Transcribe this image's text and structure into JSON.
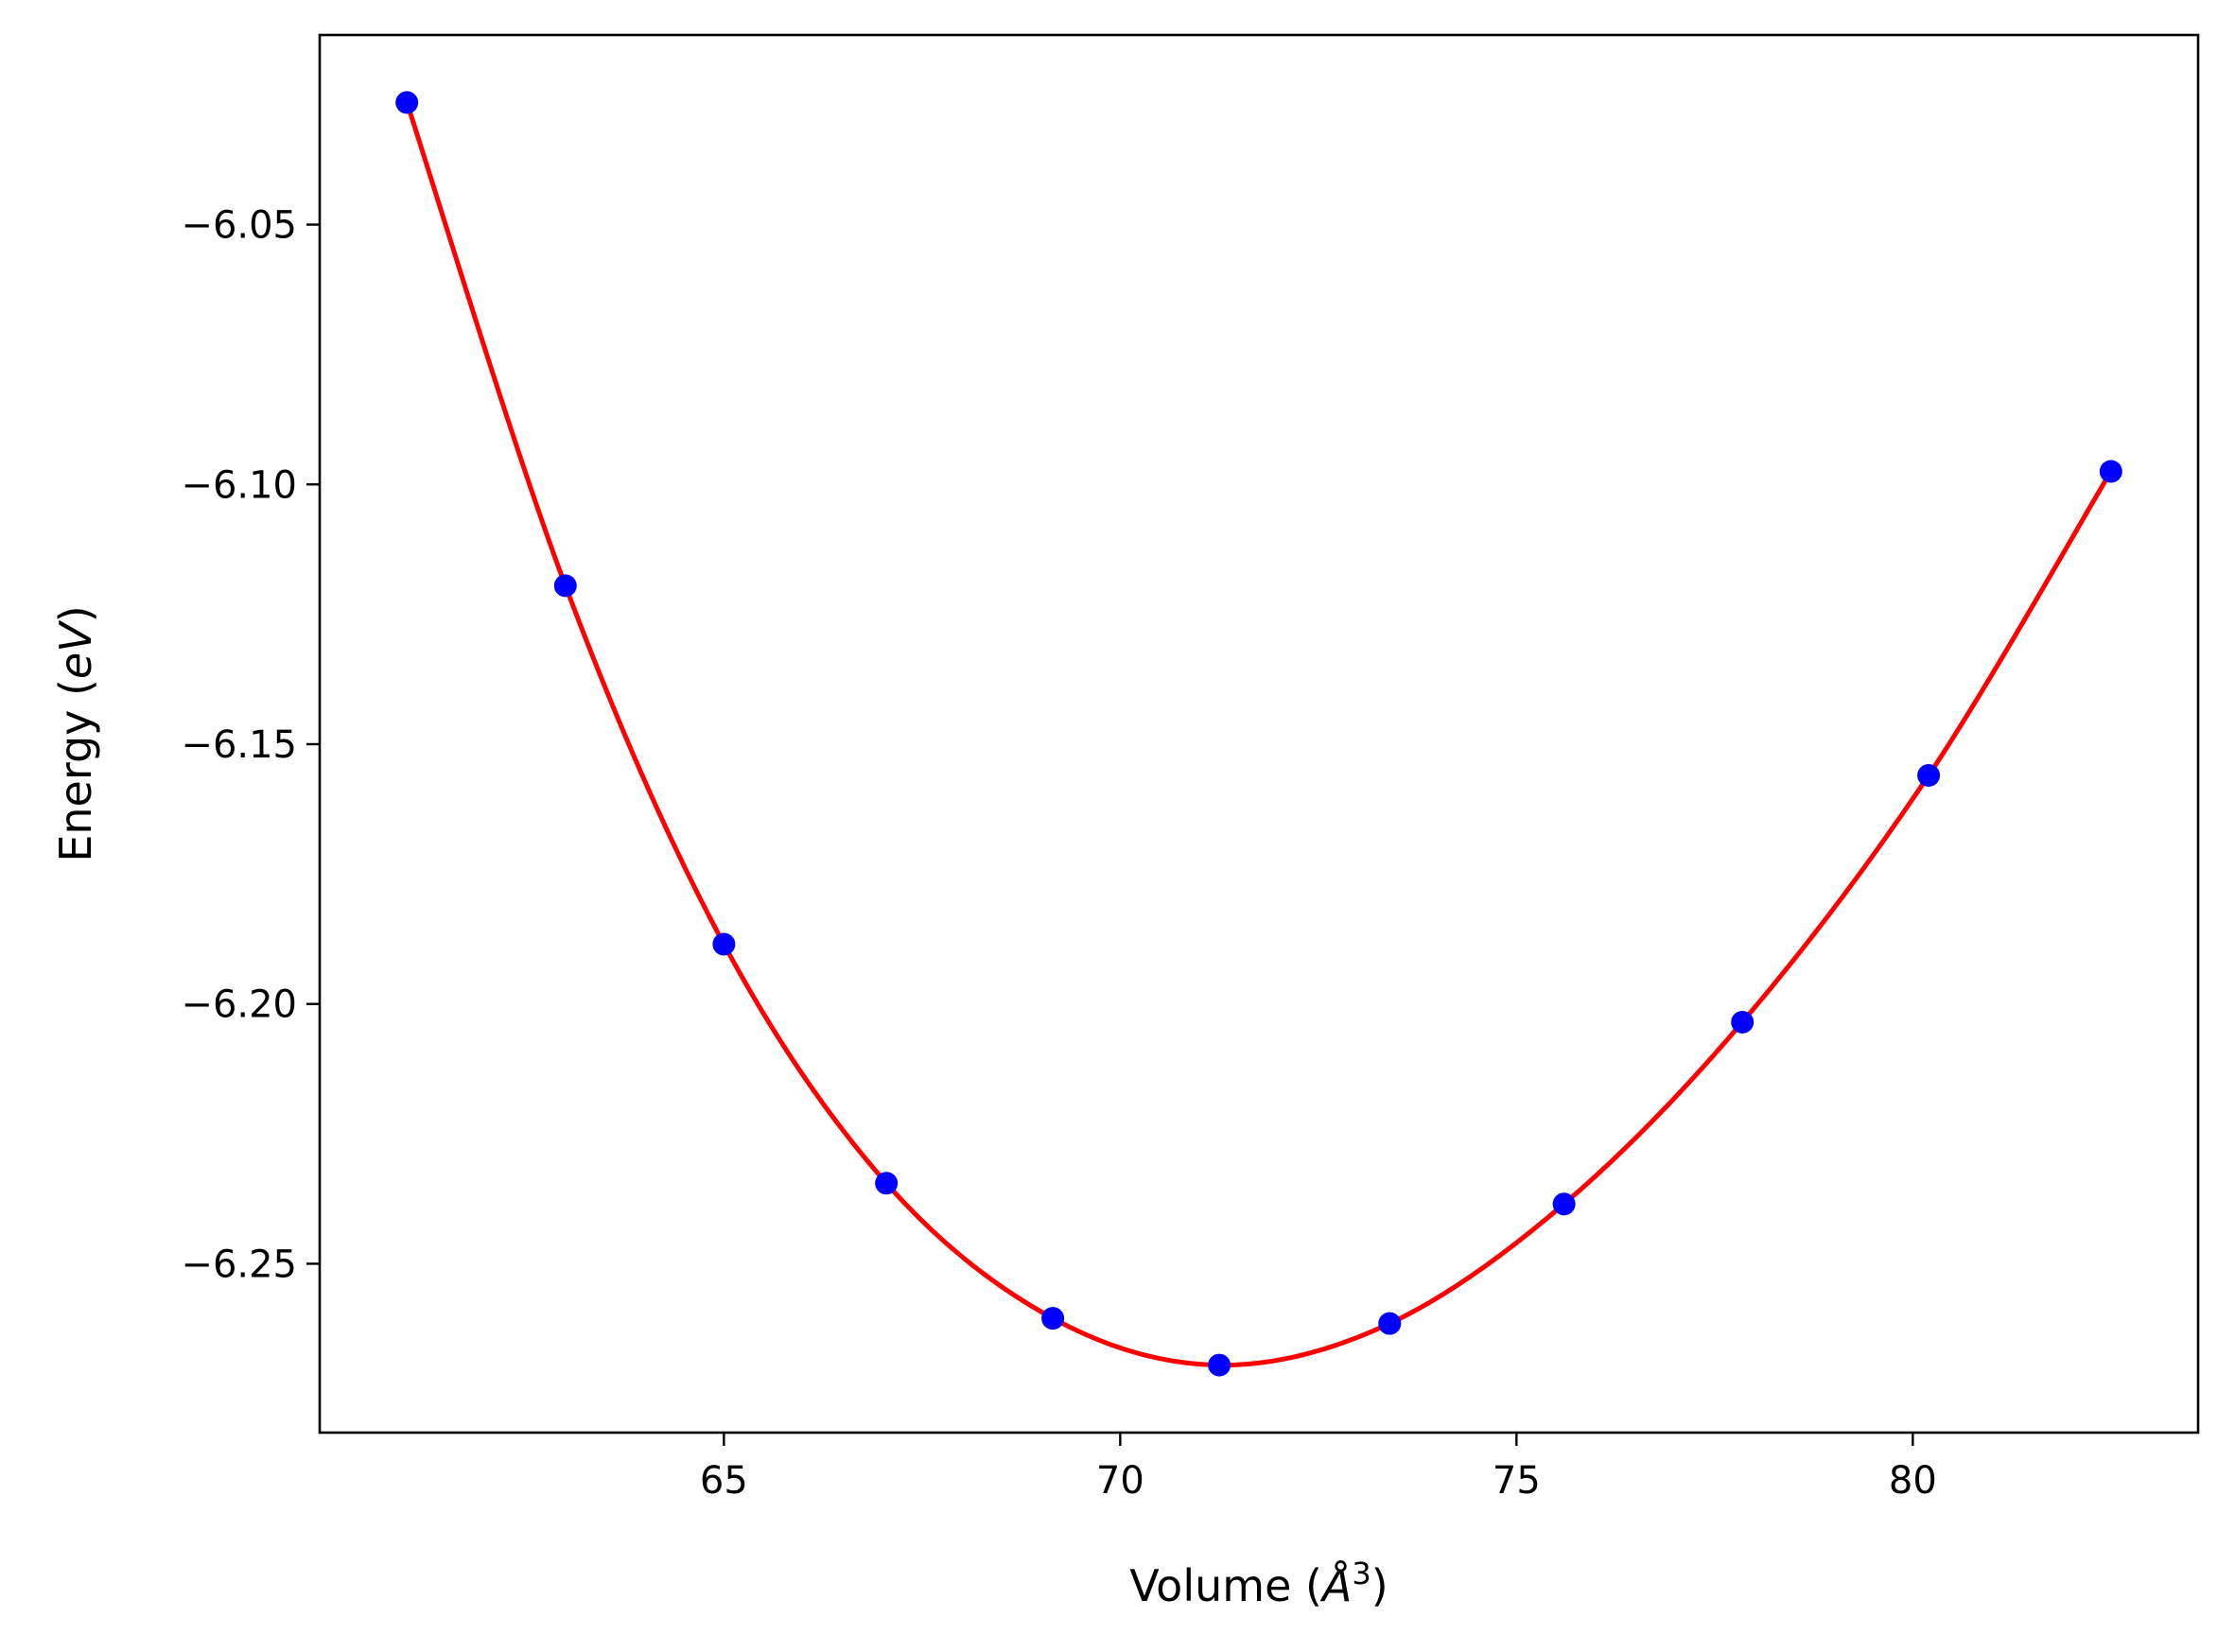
{
  "chart_data": {
    "type": "line",
    "title": "",
    "xlabel": "Volume (Å³)",
    "ylabel": "Energy (eV)",
    "xlabel_parts": {
      "prefix": "Volume (",
      "symbol": "Å",
      "superscript": "3",
      "suffix": ")"
    },
    "ylabel_parts": {
      "prefix": "Energy (",
      "unit": "eV",
      "suffix": ")"
    },
    "xlim": [
      59.9,
      83.6
    ],
    "ylim": [
      -6.2825,
      -6.0135
    ],
    "xticks": [
      {
        "value": 65,
        "label": "65"
      },
      {
        "value": 70,
        "label": "70"
      },
      {
        "value": 75,
        "label": "75"
      },
      {
        "value": 80,
        "label": "80"
      }
    ],
    "yticks": [
      {
        "value": -6.05,
        "label": "−6.05"
      },
      {
        "value": -6.1,
        "label": "−6.10"
      },
      {
        "value": -6.15,
        "label": "−6.15"
      },
      {
        "value": -6.2,
        "label": "−6.20"
      },
      {
        "value": -6.25,
        "label": "−6.25"
      }
    ],
    "grid": false,
    "series": [
      {
        "kind": "scatter",
        "color": "#0000ff",
        "x": [
          61.0,
          63.0,
          65.0,
          67.05,
          69.15,
          71.25,
          73.4,
          75.6,
          77.85,
          80.2,
          82.5
        ],
        "y": [
          -6.0265,
          -6.1195,
          -6.1885,
          -6.2345,
          -6.2605,
          -6.2695,
          -6.2615,
          -6.2385,
          -6.2035,
          -6.156,
          -6.0975
        ]
      },
      {
        "kind": "line",
        "color": "#ff0000",
        "x": [
          61.0,
          63.0,
          65.0,
          67.05,
          69.15,
          71.25,
          73.4,
          75.6,
          77.85,
          80.2,
          82.5
        ],
        "y": [
          -6.0265,
          -6.1195,
          -6.1885,
          -6.2345,
          -6.2605,
          -6.2695,
          -6.2615,
          -6.2385,
          -6.2035,
          -6.156,
          -6.0975
        ]
      }
    ]
  }
}
